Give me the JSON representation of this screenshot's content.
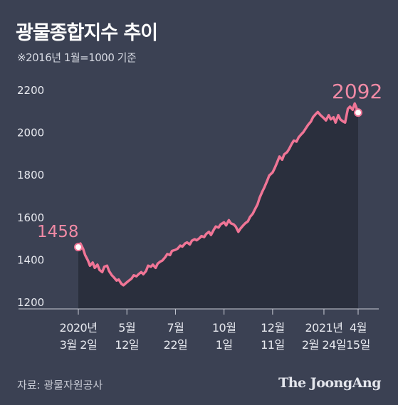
{
  "header": {
    "title": "광물종합지수 추이",
    "subtitle": "※2016년 1월=1000 기준"
  },
  "footer": {
    "source": "자료: 광물자원공사",
    "brand": "The JoongAng"
  },
  "colors": {
    "background": "#3b4153",
    "line": "#f07596",
    "area": "#2a2f3d",
    "text": "#e7e9ef"
  },
  "chart_data": {
    "type": "area",
    "title": "광물종합지수 추이",
    "subtitle": "※2016년 1월=1000 기준",
    "ylim": [
      1200,
      2200
    ],
    "yticks": [
      1200,
      1400,
      1600,
      1800,
      2000,
      2200
    ],
    "grid": false,
    "xticks": [
      {
        "date": "2020-03-02",
        "line1": "2020년",
        "line2": "3월 2일"
      },
      {
        "date": "2020-05-12",
        "line1": "5월",
        "line2": "12일"
      },
      {
        "date": "2020-07-22",
        "line1": "7월",
        "line2": "22일"
      },
      {
        "date": "2020-10-01",
        "line1": "10월",
        "line2": "1일"
      },
      {
        "date": "2020-12-11",
        "line1": "12월",
        "line2": "11일"
      },
      {
        "date": "2021-02-24",
        "line1": "2021년",
        "line2": "2월 24일"
      },
      {
        "date": "2021-04-15",
        "line1": "4월",
        "line2": "15일"
      }
    ],
    "start_label": "1458",
    "end_label": "2092",
    "series": [
      {
        "points": [
          [
            "2020-03-02",
            1458
          ],
          [
            "2020-03-05",
            1475
          ],
          [
            "2020-03-09",
            1450
          ],
          [
            "2020-03-12",
            1420
          ],
          [
            "2020-03-16",
            1395
          ],
          [
            "2020-03-19",
            1370
          ],
          [
            "2020-03-23",
            1385
          ],
          [
            "2020-03-26",
            1360
          ],
          [
            "2020-03-30",
            1375
          ],
          [
            "2020-04-02",
            1350
          ],
          [
            "2020-04-06",
            1340
          ],
          [
            "2020-04-09",
            1365
          ],
          [
            "2020-04-13",
            1370
          ],
          [
            "2020-04-16",
            1345
          ],
          [
            "2020-04-20",
            1325
          ],
          [
            "2020-04-23",
            1315
          ],
          [
            "2020-04-27",
            1300
          ],
          [
            "2020-04-30",
            1305
          ],
          [
            "2020-05-04",
            1285
          ],
          [
            "2020-05-07",
            1278
          ],
          [
            "2020-05-12",
            1292
          ],
          [
            "2020-05-15",
            1300
          ],
          [
            "2020-05-19",
            1310
          ],
          [
            "2020-05-22",
            1325
          ],
          [
            "2020-05-26",
            1320
          ],
          [
            "2020-05-29",
            1330
          ],
          [
            "2020-06-02",
            1340
          ],
          [
            "2020-06-05",
            1330
          ],
          [
            "2020-06-09",
            1345
          ],
          [
            "2020-06-12",
            1370
          ],
          [
            "2020-06-16",
            1365
          ],
          [
            "2020-06-19",
            1375
          ],
          [
            "2020-06-23",
            1360
          ],
          [
            "2020-06-26",
            1380
          ],
          [
            "2020-06-30",
            1390
          ],
          [
            "2020-07-03",
            1395
          ],
          [
            "2020-07-07",
            1410
          ],
          [
            "2020-07-10",
            1425
          ],
          [
            "2020-07-14",
            1420
          ],
          [
            "2020-07-17",
            1440
          ],
          [
            "2020-07-22",
            1445
          ],
          [
            "2020-07-25",
            1450
          ],
          [
            "2020-07-29",
            1465
          ],
          [
            "2020-08-01",
            1460
          ],
          [
            "2020-08-05",
            1475
          ],
          [
            "2020-08-08",
            1480
          ],
          [
            "2020-08-12",
            1470
          ],
          [
            "2020-08-15",
            1488
          ],
          [
            "2020-08-19",
            1495
          ],
          [
            "2020-08-22",
            1490
          ],
          [
            "2020-08-26",
            1500
          ],
          [
            "2020-08-29",
            1510
          ],
          [
            "2020-09-02",
            1505
          ],
          [
            "2020-09-05",
            1520
          ],
          [
            "2020-09-09",
            1530
          ],
          [
            "2020-09-12",
            1515
          ],
          [
            "2020-09-16",
            1540
          ],
          [
            "2020-09-19",
            1555
          ],
          [
            "2020-09-23",
            1550
          ],
          [
            "2020-09-26",
            1565
          ],
          [
            "2020-10-01",
            1575
          ],
          [
            "2020-10-04",
            1560
          ],
          [
            "2020-10-08",
            1585
          ],
          [
            "2020-10-11",
            1570
          ],
          [
            "2020-10-15",
            1565
          ],
          [
            "2020-10-18",
            1555
          ],
          [
            "2020-10-22",
            1530
          ],
          [
            "2020-10-25",
            1545
          ],
          [
            "2020-10-29",
            1560
          ],
          [
            "2020-11-01",
            1570
          ],
          [
            "2020-11-05",
            1580
          ],
          [
            "2020-11-08",
            1600
          ],
          [
            "2020-11-12",
            1615
          ],
          [
            "2020-11-15",
            1635
          ],
          [
            "2020-11-19",
            1660
          ],
          [
            "2020-11-22",
            1690
          ],
          [
            "2020-11-26",
            1720
          ],
          [
            "2020-11-29",
            1740
          ],
          [
            "2020-12-03",
            1770
          ],
          [
            "2020-12-06",
            1795
          ],
          [
            "2020-12-11",
            1810
          ],
          [
            "2020-12-14",
            1830
          ],
          [
            "2020-12-18",
            1860
          ],
          [
            "2020-12-21",
            1885
          ],
          [
            "2020-12-25",
            1870
          ],
          [
            "2020-12-28",
            1895
          ],
          [
            "2021-01-01",
            1905
          ],
          [
            "2021-01-04",
            1920
          ],
          [
            "2021-01-08",
            1945
          ],
          [
            "2021-01-11",
            1960
          ],
          [
            "2021-01-15",
            1955
          ],
          [
            "2021-01-18",
            1975
          ],
          [
            "2021-01-22",
            1990
          ],
          [
            "2021-01-25",
            2000
          ],
          [
            "2021-01-29",
            2020
          ],
          [
            "2021-02-01",
            2035
          ],
          [
            "2021-02-05",
            2050
          ],
          [
            "2021-02-08",
            2070
          ],
          [
            "2021-02-12",
            2085
          ],
          [
            "2021-02-15",
            2095
          ],
          [
            "2021-02-19",
            2080
          ],
          [
            "2021-02-24",
            2065
          ],
          [
            "2021-02-27",
            2055
          ],
          [
            "2021-03-03",
            2080
          ],
          [
            "2021-03-06",
            2060
          ],
          [
            "2021-03-10",
            2070
          ],
          [
            "2021-03-13",
            2045
          ],
          [
            "2021-03-17",
            2080
          ],
          [
            "2021-03-20",
            2060
          ],
          [
            "2021-03-24",
            2050
          ],
          [
            "2021-03-27",
            2045
          ],
          [
            "2021-03-31",
            2110
          ],
          [
            "2021-04-03",
            2120
          ],
          [
            "2021-04-07",
            2105
          ],
          [
            "2021-04-10",
            2135
          ],
          [
            "2021-04-13",
            2110
          ],
          [
            "2021-04-15",
            2092
          ]
        ]
      }
    ]
  }
}
